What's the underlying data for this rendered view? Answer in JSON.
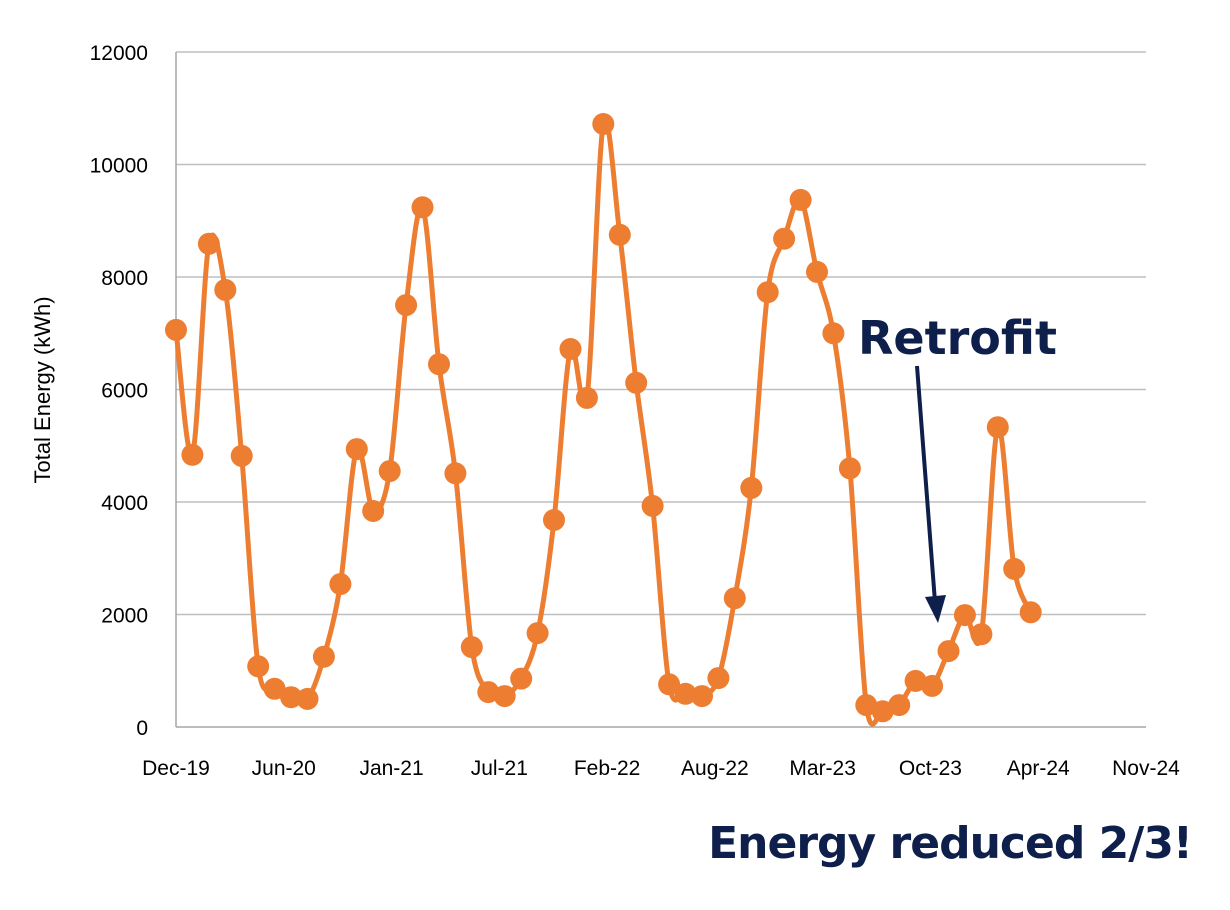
{
  "chart_data": {
    "type": "line",
    "title": "",
    "xlabel": "",
    "ylabel": "Total Energy (kWh)",
    "ylim": [
      0,
      12000
    ],
    "yticks": [
      0,
      2000,
      4000,
      6000,
      8000,
      10000,
      12000
    ],
    "xticks": [
      "Dec-19",
      "Jun-20",
      "Jan-21",
      "Jul-21",
      "Feb-22",
      "Aug-22",
      "Mar-23",
      "Oct-23",
      "Apr-24",
      "Nov-24"
    ],
    "xrange_months": 59,
    "grid": true,
    "legend": "none",
    "series": [
      {
        "name": "Total Energy (kWh)",
        "color": "#ed7d31",
        "smooth": true,
        "markers": true,
        "x": [
          "Dec-19",
          "Jan-20",
          "Feb-20",
          "Mar-20",
          "Apr-20",
          "May-20",
          "Jun-20",
          "Jul-20",
          "Aug-20",
          "Sep-20",
          "Oct-20",
          "Nov-20",
          "Dec-20",
          "Jan-21",
          "Feb-21",
          "Mar-21",
          "Apr-21",
          "May-21",
          "Jun-21",
          "Jul-21",
          "Aug-21",
          "Sep-21",
          "Oct-21",
          "Nov-21",
          "Dec-21",
          "Jan-22",
          "Feb-22",
          "Mar-22",
          "Apr-22",
          "May-22",
          "Jun-22",
          "Jul-22",
          "Aug-22",
          "Sep-22",
          "Oct-22",
          "Nov-22",
          "Dec-22",
          "Jan-23",
          "Feb-23",
          "Mar-23",
          "Apr-23",
          "May-23",
          "Jun-23",
          "Jul-23",
          "Aug-23",
          "Sep-23",
          "Oct-23",
          "Nov-23",
          "Dec-23",
          "Jan-24",
          "Feb-24",
          "Mar-24",
          "Apr-24"
        ],
        "values": [
          7060,
          4840,
          8590,
          7770,
          4820,
          1080,
          680,
          530,
          500,
          1250,
          2540,
          4940,
          3840,
          4550,
          7500,
          9240,
          6450,
          4510,
          1420,
          620,
          550,
          860,
          1670,
          3680,
          6720,
          5850,
          10720,
          8750,
          6120,
          3930,
          760,
          590,
          550,
          870,
          2290,
          4250,
          7730,
          8680,
          9370,
          8090,
          7000,
          4600,
          390,
          280,
          390,
          820,
          730,
          1350,
          1990,
          1650,
          5330,
          2810,
          2040
        ]
      }
    ],
    "annotations": [
      {
        "text": "Retrofit",
        "points_to": "Nov-23",
        "type": "arrow"
      }
    ]
  },
  "annotation": {
    "retrofit_label": "Retrofit"
  },
  "caption": "Energy reduced 2/3!",
  "colors": {
    "series": "#ed7d31",
    "annotation": "#0f1f4b",
    "grid": "#bfbfbf",
    "axis": "#a6a6a6"
  }
}
